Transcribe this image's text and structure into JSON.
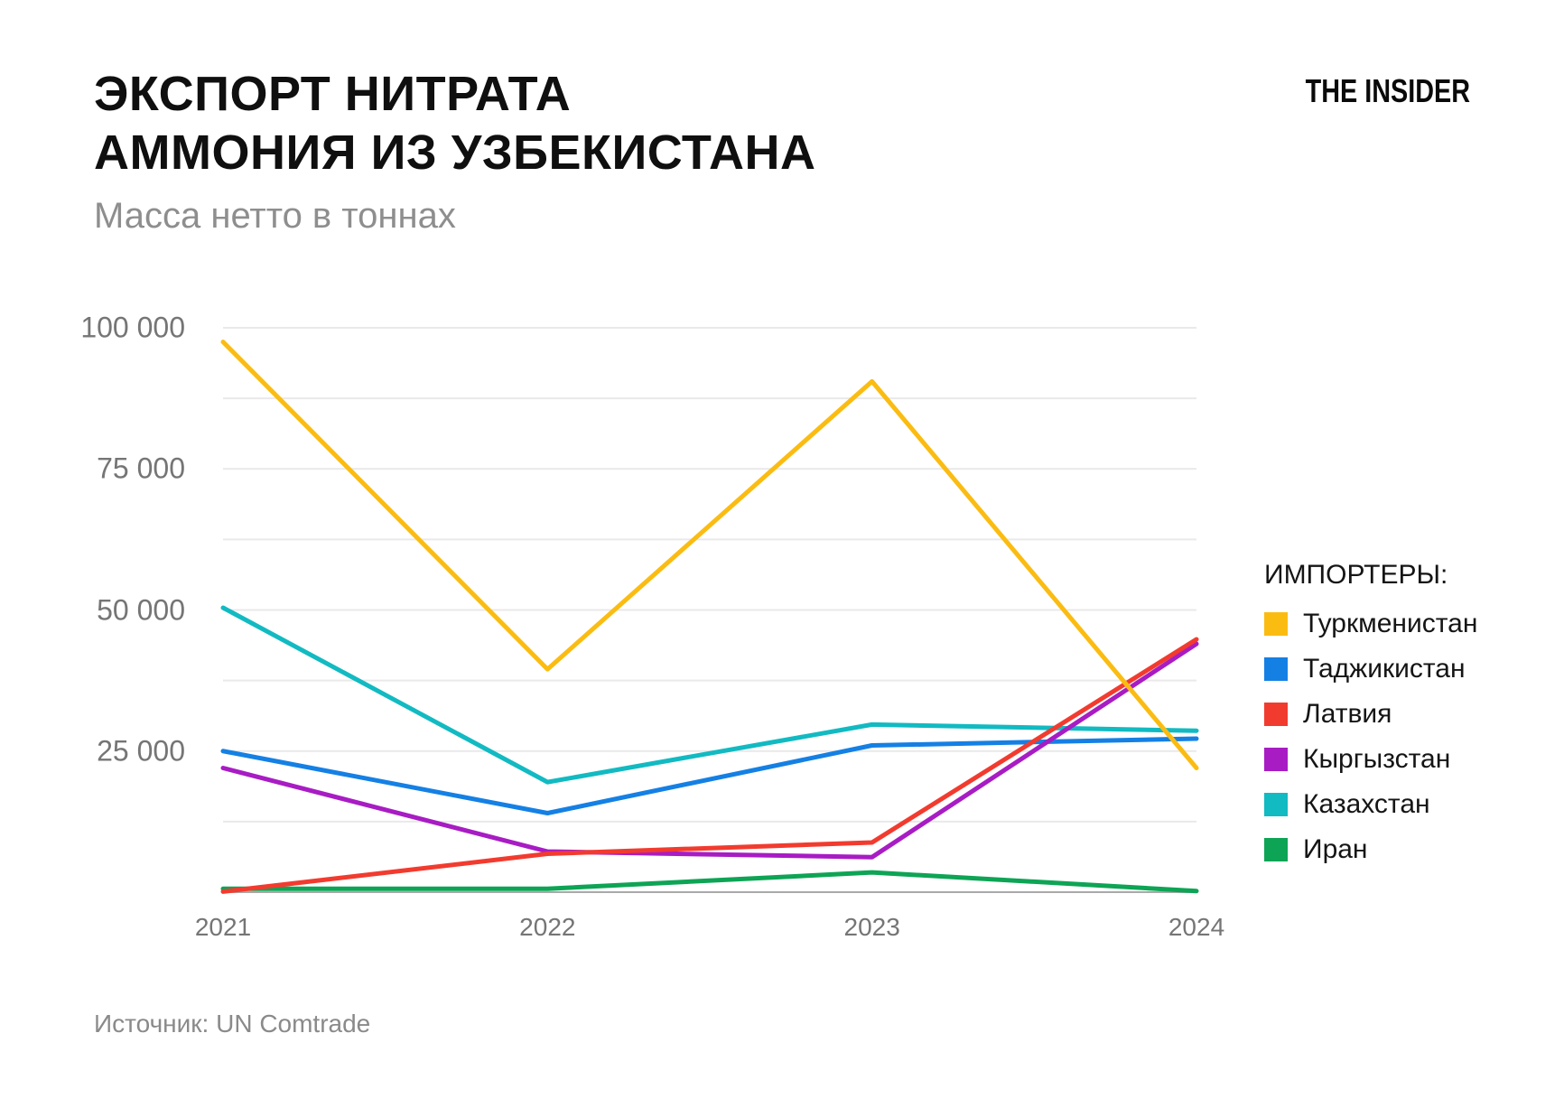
{
  "header": {
    "title_line1": "ЭКСПОРТ НИТРАТА",
    "title_line2": "АММОНИЯ ИЗ УЗБЕКИСТАНА",
    "subtitle": "Масса нетто в тоннах",
    "logo": "THE INSIDER"
  },
  "chart_data": {
    "type": "line",
    "title": "ЭКСПОРТ НИТРАТА АММОНИЯ ИЗ УЗБЕКИСТАНА",
    "subtitle": "Масса нетто в тоннах",
    "unit": "тонны",
    "categories": [
      "2021",
      "2022",
      "2023",
      "2024"
    ],
    "series": [
      {
        "key": "turkmenistan",
        "name": "Туркменистан",
        "color": "#FBBC12",
        "values": [
          97500,
          39500,
          90500,
          22000
        ]
      },
      {
        "key": "tajikistan",
        "name": "Таджикистан",
        "color": "#1580E4",
        "values": [
          25000,
          14000,
          26000,
          27200
        ]
      },
      {
        "key": "latvia",
        "name": "Латвия",
        "color": "#F23B2F",
        "values": [
          100,
          6800,
          8800,
          44800
        ]
      },
      {
        "key": "kyrgyzstan",
        "name": "Кыргызстан",
        "color": "#A81CC4",
        "values": [
          22000,
          7200,
          6200,
          44000
        ]
      },
      {
        "key": "kazakhstan",
        "name": "Казахстан",
        "color": "#12BAC2",
        "values": [
          50400,
          19500,
          29700,
          28600
        ]
      },
      {
        "key": "iran",
        "name": "Иран",
        "color": "#0EA455",
        "values": [
          600,
          600,
          3500,
          200
        ]
      }
    ],
    "draw_order": [
      "iran",
      "kazakhstan",
      "tajikistan",
      "kyrgyzstan",
      "latvia",
      "turkmenistan"
    ],
    "xlabel": "",
    "ylabel": "",
    "ylim": [
      0,
      100000
    ],
    "grid": true,
    "grid_step": 12500,
    "y_ticks": [
      {
        "value": 25000,
        "label": "25 000"
      },
      {
        "value": 50000,
        "label": "50 000"
      },
      {
        "value": 75000,
        "label": "75 000"
      },
      {
        "value": 100000,
        "label": "100 000"
      }
    ],
    "legend": {
      "title": "ИМПОРТЕРЫ:",
      "position": "right"
    }
  },
  "footer": {
    "source": "Источник: UN Comtrade"
  },
  "colors": {
    "background": "#ffffff",
    "grid": "#e9e9e9",
    "baseline": "#a9a9a9",
    "axis_text": "#757575",
    "subtitle_text": "#8e8e8e",
    "title_text": "#0f0f0f"
  }
}
